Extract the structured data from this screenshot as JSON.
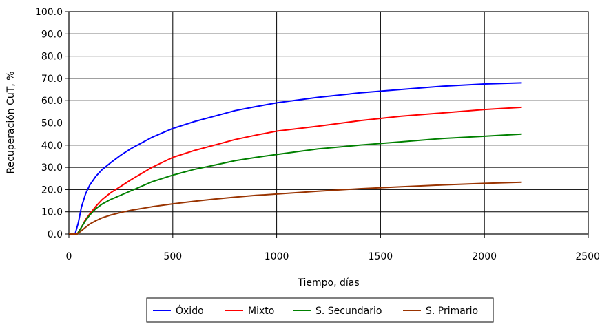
{
  "chart_data": {
    "type": "line",
    "xlabel": "Tiempo, días",
    "ylabel": "Recuperación CuT, %",
    "xlim": [
      0,
      2500
    ],
    "ylim": [
      0,
      100
    ],
    "xticks": [
      0,
      500,
      1000,
      1500,
      2000,
      2500
    ],
    "xtick_labels": [
      "0",
      "500",
      "1000",
      "1500",
      "2000",
      "2500"
    ],
    "yticks": [
      0,
      10,
      20,
      30,
      40,
      50,
      60,
      70,
      80,
      90,
      100
    ],
    "ytick_labels": [
      "0.0",
      "10.0",
      "20.0",
      "30.0",
      "40.0",
      "50.0",
      "60.0",
      "70.0",
      "80.0",
      "90.0",
      "100.0"
    ],
    "grid": true,
    "legend_position": "bottom",
    "series": [
      {
        "name": "Óxido",
        "color": "#0000ff",
        "x": [
          0,
          30,
          45,
          60,
          80,
          100,
          130,
          160,
          200,
          250,
          300,
          400,
          500,
          600,
          700,
          800,
          900,
          1000,
          1200,
          1400,
          1600,
          1800,
          2000,
          2180
        ],
        "y": [
          0,
          0,
          5,
          12,
          18,
          22,
          26,
          29,
          32,
          35.5,
          38.5,
          43.5,
          47.5,
          50.5,
          53,
          55.5,
          57.3,
          59,
          61.5,
          63.5,
          65,
          66.5,
          67.5,
          68
        ]
      },
      {
        "name": "Mixto",
        "color": "#ff0000",
        "x": [
          0,
          40,
          60,
          80,
          100,
          130,
          160,
          200,
          250,
          300,
          400,
          500,
          600,
          700,
          800,
          900,
          1000,
          1200,
          1400,
          1600,
          1800,
          2000,
          2180
        ],
        "y": [
          0,
          0,
          3,
          6.5,
          9,
          12.5,
          15.5,
          18.5,
          21.5,
          24.5,
          30,
          34.5,
          37.5,
          40,
          42.5,
          44.5,
          46.3,
          48.5,
          51,
          53,
          54.5,
          56,
          57
        ]
      },
      {
        "name": "S. Secundario",
        "color": "#008000",
        "x": [
          0,
          40,
          60,
          80,
          100,
          130,
          160,
          200,
          250,
          300,
          400,
          500,
          600,
          700,
          800,
          900,
          1000,
          1200,
          1400,
          1600,
          1800,
          2000,
          2180
        ],
        "y": [
          0,
          0,
          3,
          6,
          8.5,
          11.5,
          13.5,
          15.5,
          17.5,
          19.5,
          23.5,
          26.5,
          29,
          31,
          33,
          34.5,
          35.8,
          38.3,
          40,
          41.5,
          43,
          44,
          45
        ]
      },
      {
        "name": "S. Primario",
        "color": "#993300",
        "x": [
          0,
          40,
          60,
          80,
          100,
          130,
          160,
          200,
          250,
          300,
          400,
          500,
          600,
          700,
          800,
          900,
          1000,
          1200,
          1400,
          1600,
          1800,
          2000,
          2180
        ],
        "y": [
          0,
          0,
          1.5,
          3,
          4.5,
          6,
          7.3,
          8.5,
          9.7,
          10.7,
          12.3,
          13.6,
          14.7,
          15.7,
          16.6,
          17.4,
          18,
          19.3,
          20.4,
          21.3,
          22.1,
          22.8,
          23.3
        ]
      }
    ]
  }
}
